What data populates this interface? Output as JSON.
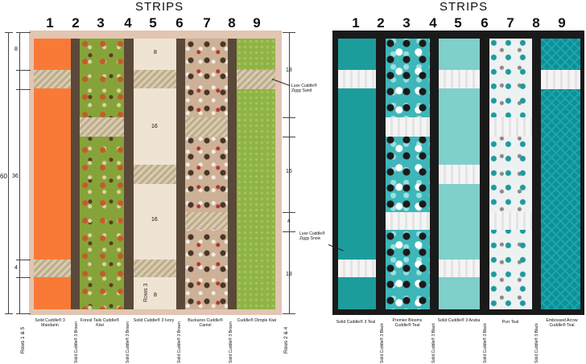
{
  "left": {
    "title": "STRIPS",
    "numbers": [
      "1",
      "2",
      "3",
      "4",
      "5",
      "6",
      "7",
      "8",
      "9"
    ],
    "labels": {
      "s1": "Solid Cuddle® 3 Mandarin",
      "s3": "Forest Tails Cuddle® Kiwi",
      "s5": "Solid Cuddle® 3 Ivory",
      "s7": "Buckaroo Cuddle® Camel",
      "s9": "Cuddle® Dimple Kiwi",
      "s2": "Solid Cuddle® 3 Brown",
      "s4": "Solid Cuddle® 3 Brown",
      "s6": "Solid Cuddle® 3 Brown",
      "s8": "Solid Cuddle® 3 Brown"
    },
    "callout": "Luxe Cuddle® Ziggy Sand",
    "rows_left": "Rows 1 & 5",
    "rows_right": "Rows 2 & 4",
    "rows3": "Rows 3",
    "dims_left": {
      "d8": "8",
      "d36": "36",
      "d4": "4",
      "d60": "60"
    },
    "dims_center": {
      "a": "8",
      "b": "16",
      "c": "16",
      "d": "8"
    },
    "dims_right": {
      "a": "18",
      "b": "16",
      "c": "4",
      "d": "18"
    },
    "colors": {
      "mandarin": "#f97a36",
      "brown": "#5a4939",
      "kiwi": "#86a33a",
      "ivory": "#efe3d3",
      "camel": "#cdb196",
      "dimple": "#8fb344",
      "frame": "#e2c5b2"
    }
  },
  "right": {
    "title": "STRIPS",
    "numbers": [
      "1",
      "2",
      "3",
      "4",
      "5",
      "6",
      "7",
      "8",
      "9"
    ],
    "labels": {
      "s1": "Solid Cuddle® 3 Teal",
      "s3": "Premier Blooms Cuddle® Teal",
      "s5": "Solid Cuddle® 3 Aruba",
      "s7": "Purr Teal",
      "s9": "Embossed Arrow Cuddle® Teal",
      "s2": "Solid Cuddle® 3 Black",
      "s4": "Solid Cuddle® 3 Black",
      "s6": "Solid Cuddle® 3 Black",
      "s8": "Solid Cuddle® 3 Black"
    },
    "callout": "Luxe Cuddle® Ziggy Snow",
    "colors": {
      "teal": "#1d9c9c",
      "black": "#1a1a1a",
      "aruba": "#7fcfcb",
      "blooms": "#3fb6b9",
      "purr": "#eef1f1",
      "arrow": "#0f8f98"
    }
  }
}
